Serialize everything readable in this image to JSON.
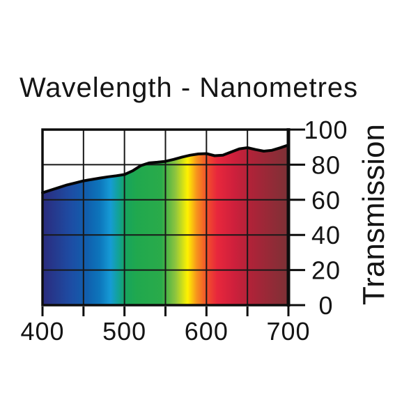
{
  "page": {
    "background": "#ffffff"
  },
  "chart_data": {
    "type": "area",
    "title": "Wavelength - Nanometres",
    "xlabel": "",
    "ylabel": "Transmission",
    "xlim": [
      400,
      700
    ],
    "ylim": [
      0,
      100
    ],
    "grid": true,
    "legend": "none",
    "x": [
      400,
      410,
      420,
      430,
      440,
      450,
      460,
      470,
      480,
      490,
      500,
      510,
      520,
      530,
      540,
      550,
      560,
      570,
      580,
      590,
      600,
      610,
      620,
      630,
      640,
      650,
      660,
      670,
      680,
      690,
      700
    ],
    "series": [
      {
        "name": "Transmission",
        "values": [
          64,
          65.5,
          67,
          68.5,
          69.6,
          70.8,
          71.6,
          72.4,
          73.1,
          73.7,
          74.4,
          76.5,
          79.5,
          81,
          81.4,
          81.9,
          83,
          84.3,
          85.4,
          86.1,
          86.3,
          85.1,
          85.4,
          87.2,
          89,
          89.7,
          88.6,
          87.7,
          88.2,
          89.6,
          91.2
        ]
      }
    ],
    "x_ticks": [
      400,
      450,
      500,
      550,
      600,
      650,
      700
    ],
    "x_labeled_ticks": [
      400,
      500,
      600,
      700
    ],
    "x_tick_labels": [
      "400",
      "500",
      "600",
      "700"
    ],
    "y_ticks": [
      0,
      20,
      40,
      60,
      80,
      100
    ],
    "y_tick_labels": [
      "0",
      "20",
      "40",
      "60",
      "80",
      "100"
    ],
    "axis_color": "#0d0d0d",
    "grid_color": "#181818",
    "curve_color": "#050505",
    "spectrum_gradient": [
      {
        "nm": 400,
        "color": "#2b2b7d"
      },
      {
        "nm": 435,
        "color": "#1d4da4"
      },
      {
        "nm": 455,
        "color": "#1060ae"
      },
      {
        "nm": 470,
        "color": "#0d76bc"
      },
      {
        "nm": 483,
        "color": "#169bd5"
      },
      {
        "nm": 492,
        "color": "#12a29b"
      },
      {
        "nm": 502,
        "color": "#17a55c"
      },
      {
        "nm": 515,
        "color": "#20a84e"
      },
      {
        "nm": 545,
        "color": "#2aab4a"
      },
      {
        "nm": 562,
        "color": "#8cc43f"
      },
      {
        "nm": 577,
        "color": "#fef200"
      },
      {
        "nm": 588,
        "color": "#f7941d"
      },
      {
        "nm": 600,
        "color": "#f1512b"
      },
      {
        "nm": 613,
        "color": "#e8273c"
      },
      {
        "nm": 633,
        "color": "#cf203c"
      },
      {
        "nm": 655,
        "color": "#ae2338"
      },
      {
        "nm": 700,
        "color": "#7c3136"
      }
    ]
  }
}
